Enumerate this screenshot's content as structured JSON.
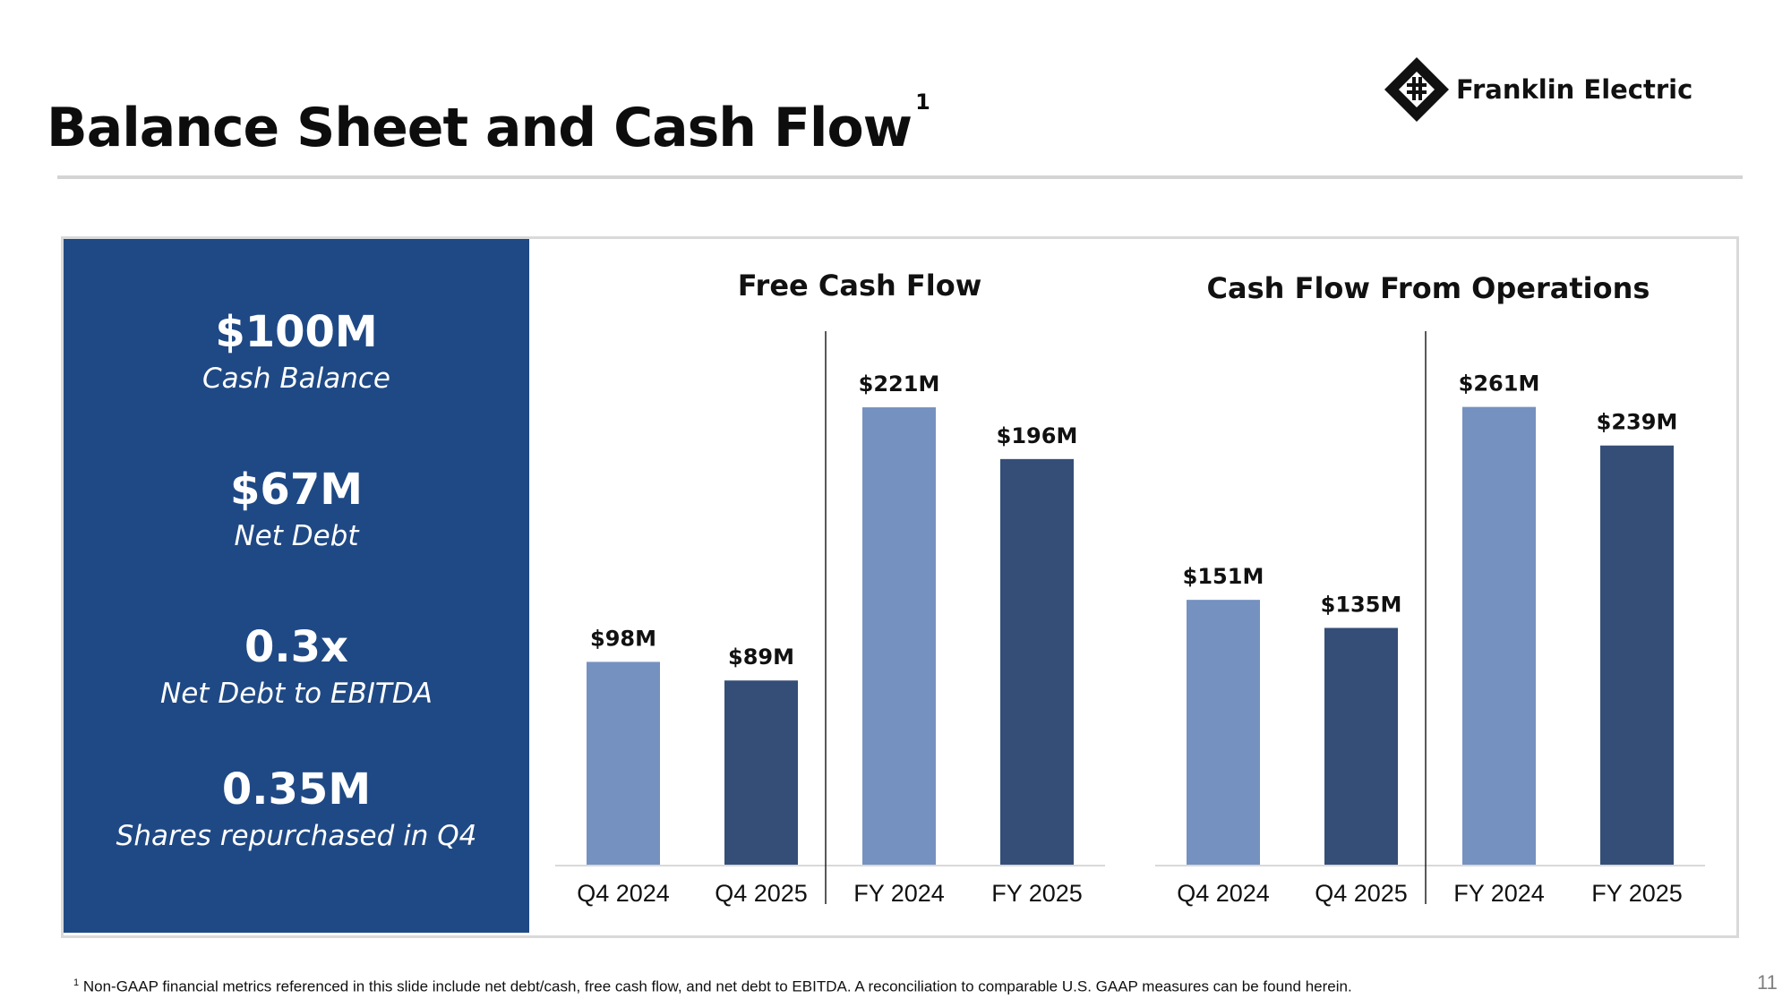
{
  "header": {
    "title": "Balance Sheet and Cash Flow",
    "title_footnote_marker": "1",
    "logo_text": "Franklin Electric",
    "logo_icon": "franklin-diamond-logo"
  },
  "kpis": [
    {
      "value": "$100M",
      "label": "Cash Balance"
    },
    {
      "value": "$67M",
      "label": "Net Debt"
    },
    {
      "value": "0.3x",
      "label": "Net Debt to EBITDA"
    },
    {
      "value": "0.35M",
      "label": "Shares repurchased in Q4"
    }
  ],
  "colors": {
    "panel_blue": "#1f4985",
    "bar_light": "#7591c0",
    "bar_dark": "#344e77"
  },
  "chart_data": [
    {
      "type": "bar",
      "title": "Free Cash Flow",
      "unit": "$M",
      "categories": [
        "Q4 2024",
        "Q4 2025",
        "FY 2024",
        "FY 2025"
      ],
      "values": [
        98,
        89,
        221,
        196
      ],
      "data_labels": [
        "$98M",
        "$89M",
        "$221M",
        "$196M"
      ],
      "bar_colors": [
        "#7591c0",
        "#344e77",
        "#7591c0",
        "#344e77"
      ],
      "ylim": [
        0,
        250
      ],
      "xlabel": "",
      "ylabel": "",
      "grid": false,
      "legend": "none"
    },
    {
      "type": "bar",
      "title": "Cash Flow From Operations",
      "unit": "$M",
      "categories": [
        "Q4 2024",
        "Q4 2025",
        "FY 2024",
        "FY 2025"
      ],
      "values": [
        151,
        135,
        261,
        239
      ],
      "data_labels": [
        "$151M",
        "$135M",
        "$261M",
        "$239M"
      ],
      "bar_colors": [
        "#7591c0",
        "#344e77",
        "#7591c0",
        "#344e77"
      ],
      "ylim": [
        0,
        295
      ],
      "xlabel": "",
      "ylabel": "",
      "grid": false,
      "legend": "none"
    }
  ],
  "footer": {
    "footnote_marker": "1",
    "footnote": "Non-GAAP financial metrics referenced in this slide include net debt/cash, free cash flow, and net debt to EBITDA. A reconciliation to comparable U.S. GAAP measures can be found herein.",
    "page_number": "11"
  }
}
